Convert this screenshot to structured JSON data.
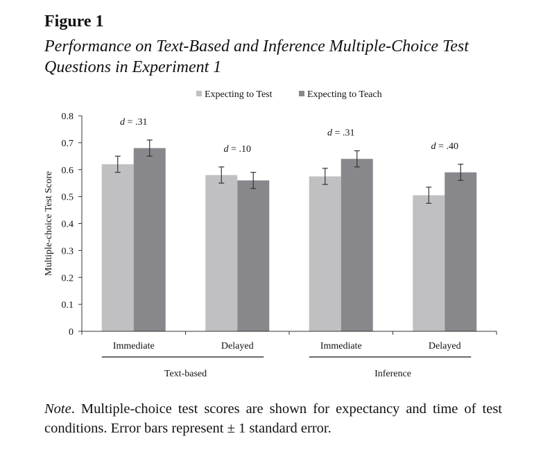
{
  "figure": {
    "label": "Figure 1",
    "title": "Performance on Text-Based and Inference Multiple-Choice Test Questions in Experiment 1"
  },
  "note": {
    "lead": "Note",
    "text": ". Multiple-choice test scores are shown for expectancy and time of test conditions. Error bars represent ± 1 standard error."
  },
  "chart_data": {
    "type": "bar",
    "title": "",
    "ylabel": "Multiple-choice Test Score",
    "xlabel": "",
    "ylim": [
      0,
      0.8
    ],
    "yticks": [
      "0",
      "0.1",
      "0.2",
      "0.3",
      "0.4",
      "0.5",
      "0.6",
      "0.7",
      "0.8"
    ],
    "categories": [
      "Immediate",
      "Delayed",
      "Immediate",
      "Delayed"
    ],
    "groups": [
      {
        "label": "Text-based",
        "categories": [
          0,
          1
        ]
      },
      {
        "label": "Inference",
        "categories": [
          2,
          3
        ]
      }
    ],
    "series": [
      {
        "name": "Expecting to Test",
        "color": "#c0c0c2",
        "values": [
          0.62,
          0.58,
          0.575,
          0.505
        ],
        "errors": [
          0.03,
          0.03,
          0.03,
          0.03
        ]
      },
      {
        "name": "Expecting to Teach",
        "color": "#88888c",
        "values": [
          0.68,
          0.56,
          0.64,
          0.59
        ],
        "errors": [
          0.03,
          0.03,
          0.03,
          0.03
        ]
      }
    ],
    "annotations": [
      {
        "category": 0,
        "label": "d = .31"
      },
      {
        "category": 1,
        "label": "d = .10"
      },
      {
        "category": 2,
        "label": "d = .31"
      },
      {
        "category": 3,
        "label": "d = .40"
      }
    ],
    "legend_position": "top-center",
    "grid": false
  }
}
